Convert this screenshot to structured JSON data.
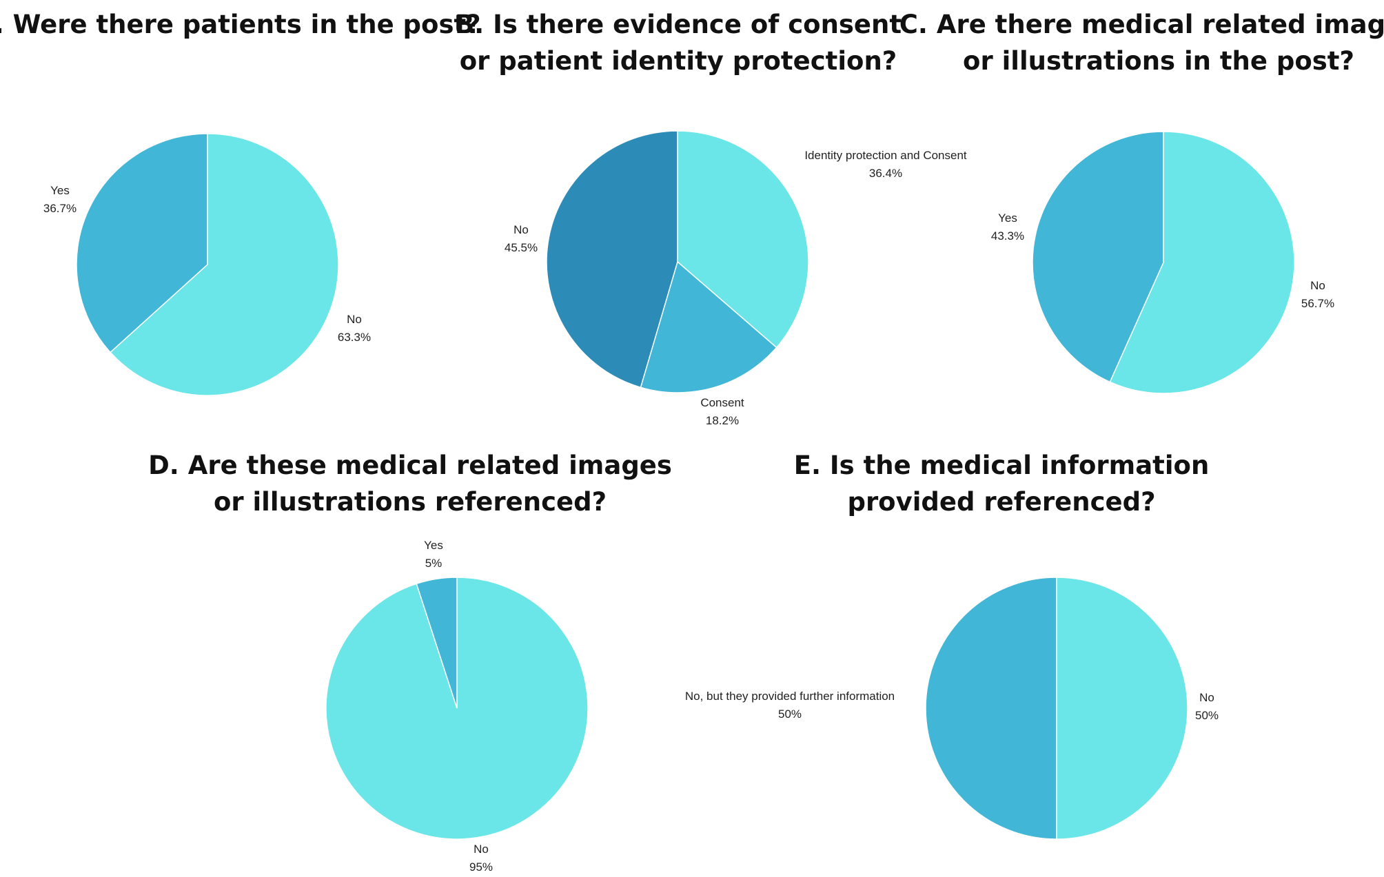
{
  "colors": {
    "light": "#6ae5e8",
    "medium": "#41b6d6",
    "dark": "#2d8bb7",
    "slice_border": "#ffffff"
  },
  "chart_data": [
    {
      "type": "pie",
      "title_lines": [
        "A. Were there patients in the post?"
      ],
      "slices": [
        {
          "label": "No",
          "value": 63.3,
          "display": "63.3%",
          "color": "#6ae5e8"
        },
        {
          "label": "Yes",
          "value": 36.7,
          "display": "36.7%",
          "color": "#41b6d6"
        }
      ]
    },
    {
      "type": "pie",
      "title_lines": [
        "B. Is there evidence of consent",
        "or patient identity protection?"
      ],
      "slices": [
        {
          "label": "Identity protection and Consent",
          "value": 36.4,
          "display": "36.4%",
          "color": "#6ae5e8"
        },
        {
          "label": "Consent",
          "value": 18.2,
          "display": "18.2%",
          "color": "#41b6d6"
        },
        {
          "label": "No",
          "value": 45.5,
          "display": "45.5%",
          "color": "#2d8bb7"
        }
      ]
    },
    {
      "type": "pie",
      "title_lines": [
        "C. Are there medical related images",
        "or illustrations in the post?"
      ],
      "slices": [
        {
          "label": "No",
          "value": 56.7,
          "display": "56.7%",
          "color": "#6ae5e8"
        },
        {
          "label": "Yes",
          "value": 43.3,
          "display": "43.3%",
          "color": "#41b6d6"
        }
      ]
    },
    {
      "type": "pie",
      "title_lines": [
        "D. Are these medical related images",
        "or illustrations referenced?"
      ],
      "slices": [
        {
          "label": "No",
          "value": 95,
          "display": "95%",
          "color": "#6ae5e8"
        },
        {
          "label": "Yes",
          "value": 5,
          "display": "5%",
          "color": "#41b6d6"
        }
      ]
    },
    {
      "type": "pie",
      "title_lines": [
        "E. Is the medical information",
        "provided referenced?"
      ],
      "slices": [
        {
          "label": "No",
          "value": 50,
          "display": "50%",
          "color": "#6ae5e8"
        },
        {
          "label": "No, but they provided further information",
          "value": 50,
          "display": "50%",
          "color": "#41b6d6"
        }
      ]
    }
  ]
}
